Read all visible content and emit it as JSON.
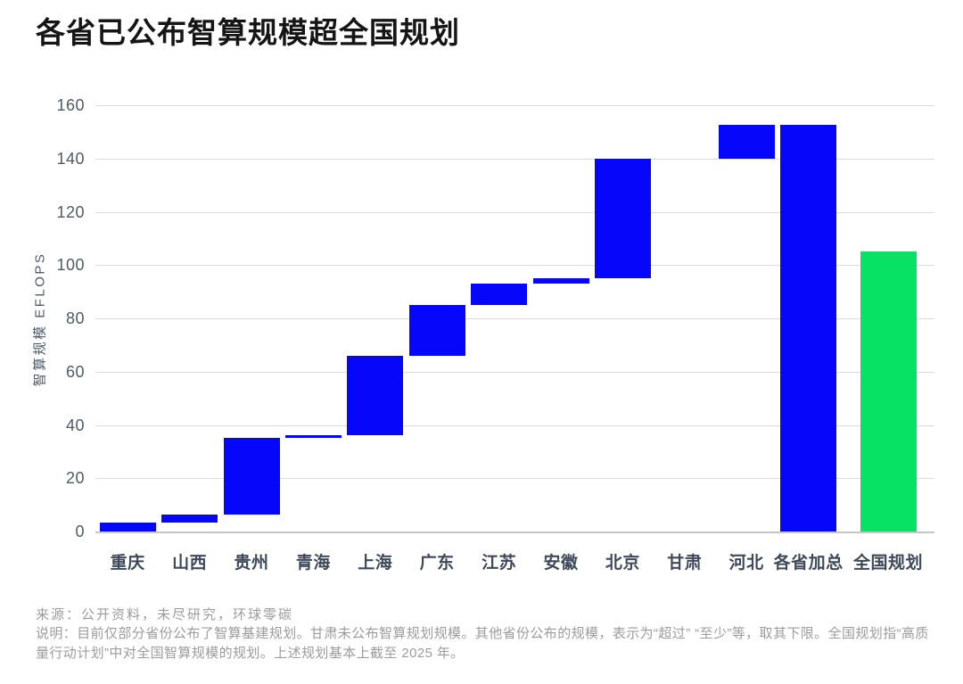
{
  "title": "各省已公布智算规模超全国规划",
  "chart_data": {
    "type": "bar",
    "subtype": "waterfall",
    "title": "各省已公布智算规模超全国规划",
    "ylabel": "智算规模 EFLOPS",
    "xlabel": "",
    "ylim": [
      0,
      160
    ],
    "yticks": [
      0,
      20,
      40,
      60,
      80,
      100,
      120,
      140,
      160
    ],
    "grid": "horizontal",
    "legend": "none",
    "categories": [
      "重庆",
      "山西",
      "贵州",
      "青海",
      "上海",
      "广东",
      "江苏",
      "安徽",
      "北京",
      "甘肃",
      "河北",
      "各省加总",
      "全国规划"
    ],
    "bars": [
      {
        "label": "重庆",
        "value": 3.5,
        "start": 0,
        "end": 3.5,
        "color": "blue"
      },
      {
        "label": "山西",
        "value": 3,
        "start": 3.5,
        "end": 6.5,
        "color": "blue"
      },
      {
        "label": "贵州",
        "value": 28.5,
        "start": 6.5,
        "end": 35,
        "color": "blue"
      },
      {
        "label": "青海",
        "value": 1,
        "start": 35,
        "end": 36,
        "color": "blue"
      },
      {
        "label": "上海",
        "value": 30,
        "start": 36,
        "end": 66,
        "color": "blue"
      },
      {
        "label": "广东",
        "value": 19,
        "start": 66,
        "end": 85,
        "color": "blue"
      },
      {
        "label": "江苏",
        "value": 8,
        "start": 85,
        "end": 93,
        "color": "blue"
      },
      {
        "label": "安徽",
        "value": 2,
        "start": 93,
        "end": 95,
        "color": "blue"
      },
      {
        "label": "北京",
        "value": 45,
        "start": 95,
        "end": 140,
        "color": "blue"
      },
      {
        "label": "甘肃",
        "value": null,
        "start": null,
        "end": null,
        "color": "none"
      },
      {
        "label": "河北",
        "value": 12.5,
        "start": 140,
        "end": 152.5,
        "color": "blue"
      },
      {
        "label": "各省加总",
        "value": 152.5,
        "start": 0,
        "end": 152.5,
        "color": "blue"
      },
      {
        "label": "全国规划",
        "value": 105,
        "start": 0,
        "end": 105,
        "color": "green"
      }
    ],
    "colors": {
      "blue": "#0606fa",
      "green": "#07e264"
    }
  },
  "footer": {
    "source": "来源：公开资料，未尽研究，环球零碳",
    "note": "说明：目前仅部分省份公布了智算基建规划。甘肃未公布智算规划规模。其他省份公布的规模，表示为“超过” “至少”等，取其下限。全国规划指“高质量行动计划”中对全国智算规模的规划。上述规划基本上截至 2025 年。"
  }
}
